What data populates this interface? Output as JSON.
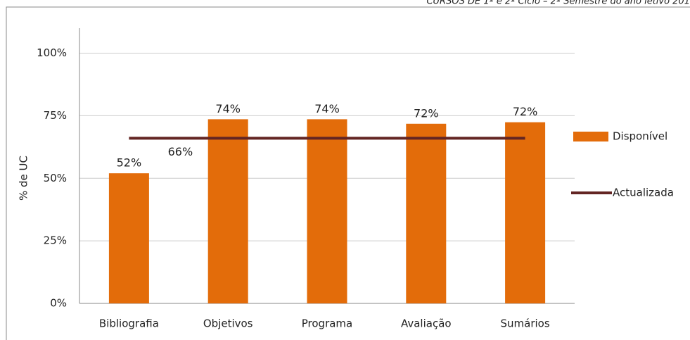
{
  "header": {
    "title": "CURSOS DE 1º e 2º Ciclo – 2º Semestre do ano letivo 201"
  },
  "chart_data": {
    "type": "bar",
    "ylabel": "% de UC",
    "categories": [
      "Bibliografia",
      "Objetivos",
      "Programa",
      "Avaliação",
      "Sumários"
    ],
    "series": [
      {
        "name": "Disponível",
        "type": "bar",
        "color": "#e36c0a",
        "values": [
          52,
          73.6,
          73.6,
          71.8,
          72.4
        ],
        "value_labels": [
          "52%",
          "74%",
          "74%",
          "72%",
          "72%"
        ]
      },
      {
        "name": "Actualizada",
        "type": "line",
        "color": "#632523",
        "values": [
          66,
          66,
          66,
          66,
          66
        ],
        "value_labels": [
          "66%",
          null,
          null,
          null,
          null
        ]
      }
    ],
    "ylim": [
      0,
      110
    ],
    "yticks": [
      {
        "value": 0,
        "label": "0%"
      },
      {
        "value": 25,
        "label": "25%"
      },
      {
        "value": 50,
        "label": "50%"
      },
      {
        "value": 75,
        "label": "75%"
      },
      {
        "value": 100,
        "label": "100%"
      }
    ],
    "grid": true,
    "legend": "right"
  }
}
